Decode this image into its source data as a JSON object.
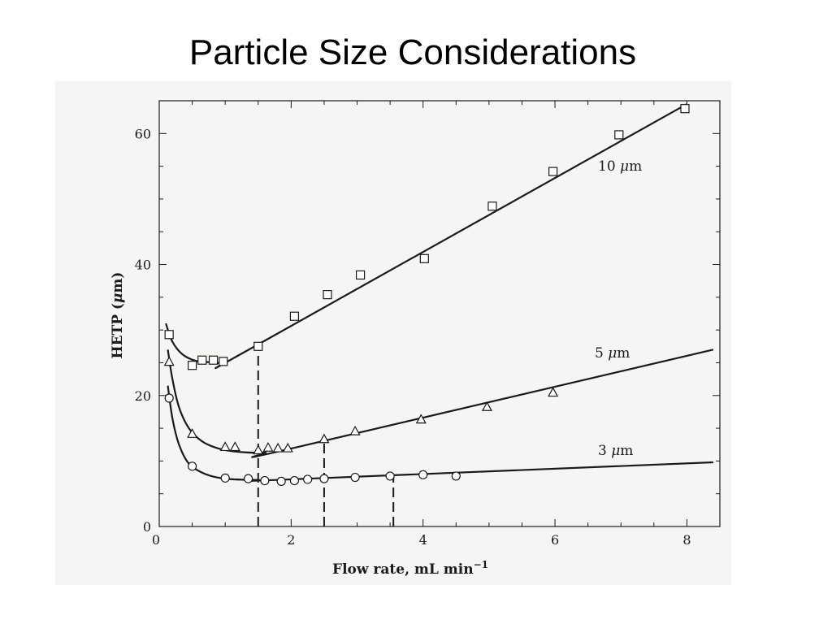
{
  "slide": {
    "title": "Particle Size Considerations"
  },
  "chart_data": {
    "type": "scatter",
    "xlabel_main": "Flow rate, mL min",
    "xlabel_sup": "−1",
    "ylabel_pre": "HETP (",
    "ylabel_mu": "μ",
    "ylabel_post": "m)",
    "xlim": [
      0,
      8.5
    ],
    "ylim": [
      0,
      65
    ],
    "xticks": [
      0,
      2,
      4,
      6,
      8
    ],
    "yticks": [
      0,
      20,
      40,
      60
    ],
    "grid": false,
    "series": [
      {
        "name": "10 μm",
        "label_number": "10 ",
        "marker": "square",
        "points": [
          [
            0.15,
            29.3
          ],
          [
            0.5,
            24.6
          ],
          [
            0.65,
            25.4
          ],
          [
            0.82,
            25.4
          ],
          [
            0.97,
            25.2
          ],
          [
            1.5,
            27.5
          ],
          [
            2.05,
            32.1
          ],
          [
            2.55,
            35.4
          ],
          [
            3.05,
            38.4
          ],
          [
            4.02,
            40.9
          ],
          [
            5.05,
            48.9
          ],
          [
            5.97,
            54.2
          ],
          [
            6.97,
            59.8
          ],
          [
            7.97,
            63.8
          ]
        ],
        "curve": [
          [
            0.1,
            31
          ],
          [
            0.2,
            28.2
          ],
          [
            0.35,
            26.3
          ],
          [
            0.55,
            25.3
          ],
          [
            0.75,
            25.1
          ],
          [
            1.0,
            25.2
          ],
          [
            1.5,
            27.8
          ],
          [
            8.0,
            64.5
          ]
        ]
      },
      {
        "name": "5 μm",
        "label_number": "5 ",
        "marker": "triangle",
        "points": [
          [
            0.15,
            25.1
          ],
          [
            0.5,
            14.1
          ],
          [
            1.0,
            12.1
          ],
          [
            1.15,
            12.1
          ],
          [
            1.5,
            11.6
          ],
          [
            1.65,
            12.0
          ],
          [
            1.8,
            11.9
          ],
          [
            1.95,
            11.9
          ],
          [
            2.5,
            13.3
          ],
          [
            2.97,
            14.5
          ],
          [
            3.97,
            16.3
          ],
          [
            4.97,
            18.2
          ],
          [
            5.97,
            20.4
          ]
        ],
        "curve": [
          [
            0.13,
            27
          ],
          [
            0.2,
            22.5
          ],
          [
            0.3,
            18.2
          ],
          [
            0.45,
            15.0
          ],
          [
            0.65,
            13.0
          ],
          [
            0.9,
            11.9
          ],
          [
            1.2,
            11.4
          ],
          [
            1.6,
            11.3
          ],
          [
            2.0,
            11.9
          ],
          [
            8.4,
            27
          ]
        ]
      },
      {
        "name": "3 μm",
        "label_number": "3 ",
        "marker": "circle",
        "points": [
          [
            0.15,
            19.6
          ],
          [
            0.5,
            9.2
          ],
          [
            1.0,
            7.4
          ],
          [
            1.35,
            7.3
          ],
          [
            1.6,
            7.0
          ],
          [
            1.85,
            6.9
          ],
          [
            2.05,
            7.0
          ],
          [
            2.25,
            7.2
          ],
          [
            2.5,
            7.3
          ],
          [
            2.97,
            7.5
          ],
          [
            3.5,
            7.7
          ],
          [
            4.0,
            7.9
          ],
          [
            4.5,
            7.7
          ]
        ],
        "curve": [
          [
            0.13,
            21.5
          ],
          [
            0.2,
            16.5
          ],
          [
            0.3,
            12.5
          ],
          [
            0.45,
            9.6
          ],
          [
            0.7,
            8.0
          ],
          [
            1.0,
            7.3
          ],
          [
            1.5,
            7.1
          ],
          [
            2.0,
            7.2
          ],
          [
            8.4,
            9.8
          ]
        ]
      }
    ],
    "optimum_lines": [
      1.5,
      2.5,
      3.55
    ]
  }
}
